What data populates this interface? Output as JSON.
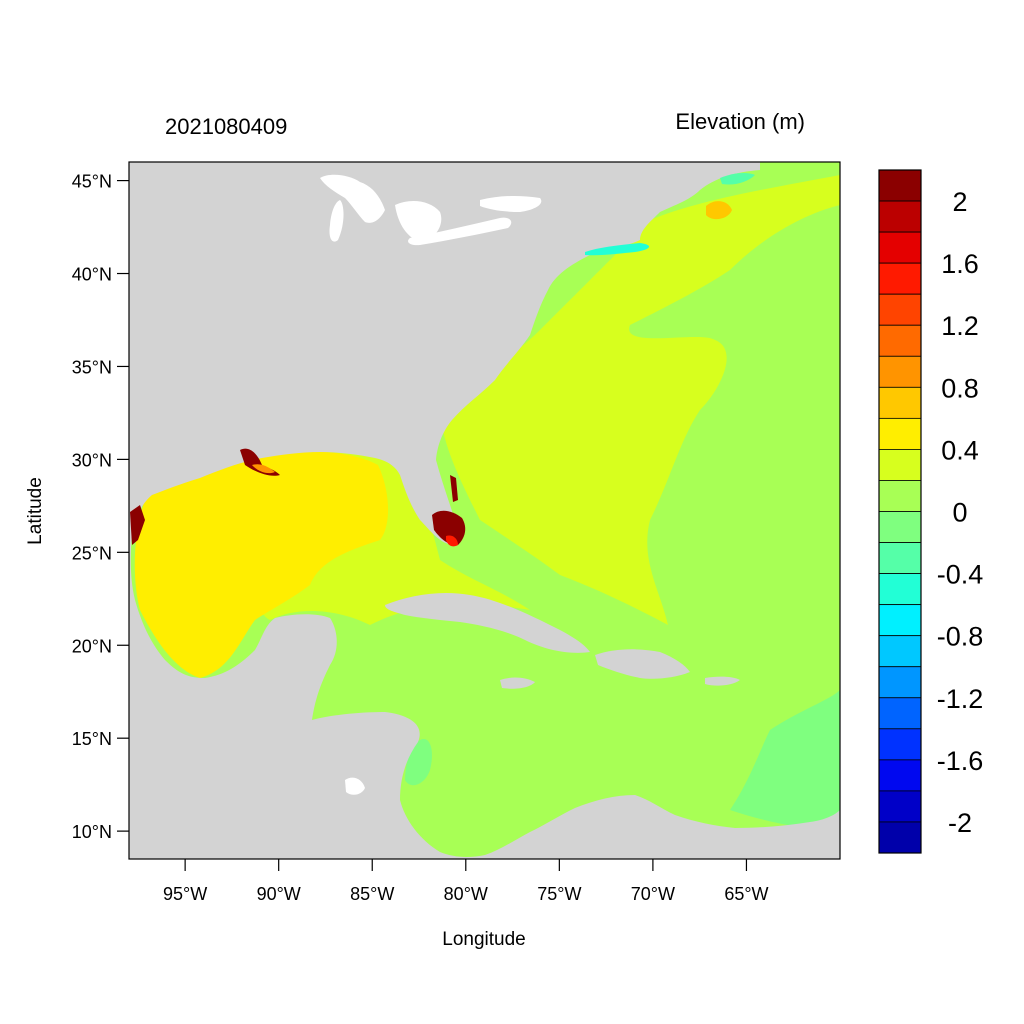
{
  "header": {
    "left_title": "2021080409",
    "right_title": "Elevation (m)"
  },
  "axes": {
    "xlabel": "Longitude",
    "ylabel": "Latitude",
    "lon_range": [
      -98,
      -60
    ],
    "lat_range": [
      8.5,
      46
    ],
    "x_ticks": [
      {
        "value": -95,
        "label": "95°W"
      },
      {
        "value": -90,
        "label": "90°W"
      },
      {
        "value": -85,
        "label": "85°W"
      },
      {
        "value": -80,
        "label": "80°W"
      },
      {
        "value": -75,
        "label": "75°W"
      },
      {
        "value": -70,
        "label": "70°W"
      },
      {
        "value": -65,
        "label": "65°W"
      }
    ],
    "y_ticks": [
      {
        "value": 45,
        "label": "45°N"
      },
      {
        "value": 40,
        "label": "40°N"
      },
      {
        "value": 35,
        "label": "35°N"
      },
      {
        "value": 30,
        "label": "30°N"
      },
      {
        "value": 25,
        "label": "25°N"
      },
      {
        "value": 20,
        "label": "20°N"
      },
      {
        "value": 15,
        "label": "15°N"
      },
      {
        "value": 10,
        "label": "10°N"
      }
    ]
  },
  "colorbar": {
    "colors_top_to_bottom": [
      "#8b0000",
      "#bb0000",
      "#e40000",
      "#ff1a00",
      "#ff4400",
      "#ff6a00",
      "#ff9400",
      "#ffc800",
      "#ffee00",
      "#d7ff1e",
      "#a8ff55",
      "#7fff7f",
      "#55ffa8",
      "#22ffd6",
      "#00f0ff",
      "#00c8ff",
      "#0096ff",
      "#0064ff",
      "#0032ff",
      "#0008f0",
      "#0000c8",
      "#0000aa"
    ],
    "labels": [
      "2",
      "1.6",
      "1.2",
      "0.8",
      "0.4",
      "0",
      "-0.4",
      "-0.8",
      "-1.2",
      "-1.6",
      "-2"
    ]
  },
  "map": {
    "land_color": "#d3d3d3",
    "lake_color": "#ffffff",
    "regions": {
      "gulf_of_mexico": "0.4 to 0.6 m",
      "us_east_coast_shelf": "0.2 to 0.4 m",
      "open_atlantic_caribbean": "0 to 0.2 m",
      "south_florida_coast": "above 2 m"
    }
  }
}
